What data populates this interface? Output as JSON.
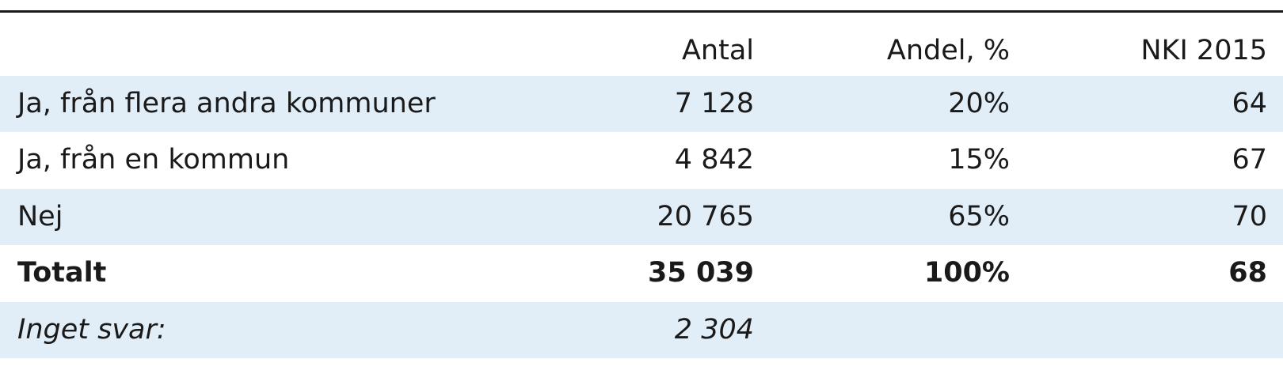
{
  "table": {
    "headers": [
      "",
      "Antal",
      "Andel, %",
      "NKI 2015"
    ],
    "rows": [
      {
        "label": "Ja, från flera andra kommuner",
        "antal": "7 128",
        "andel": "20%",
        "nki": "64"
      },
      {
        "label": "Ja, från en kommun",
        "antal": "4 842",
        "andel": "15%",
        "nki": "67"
      },
      {
        "label": "Nej",
        "antal": "20 765",
        "andel": "65%",
        "nki": "70"
      },
      {
        "label": "Totalt",
        "antal": "35 039",
        "andel": "100%",
        "nki": "68"
      },
      {
        "label": "Inget svar:",
        "antal": "2 304",
        "andel": "",
        "nki": ""
      }
    ]
  },
  "colors": {
    "row_shade": "#e1eef8",
    "rule": "#1a1a1a"
  }
}
